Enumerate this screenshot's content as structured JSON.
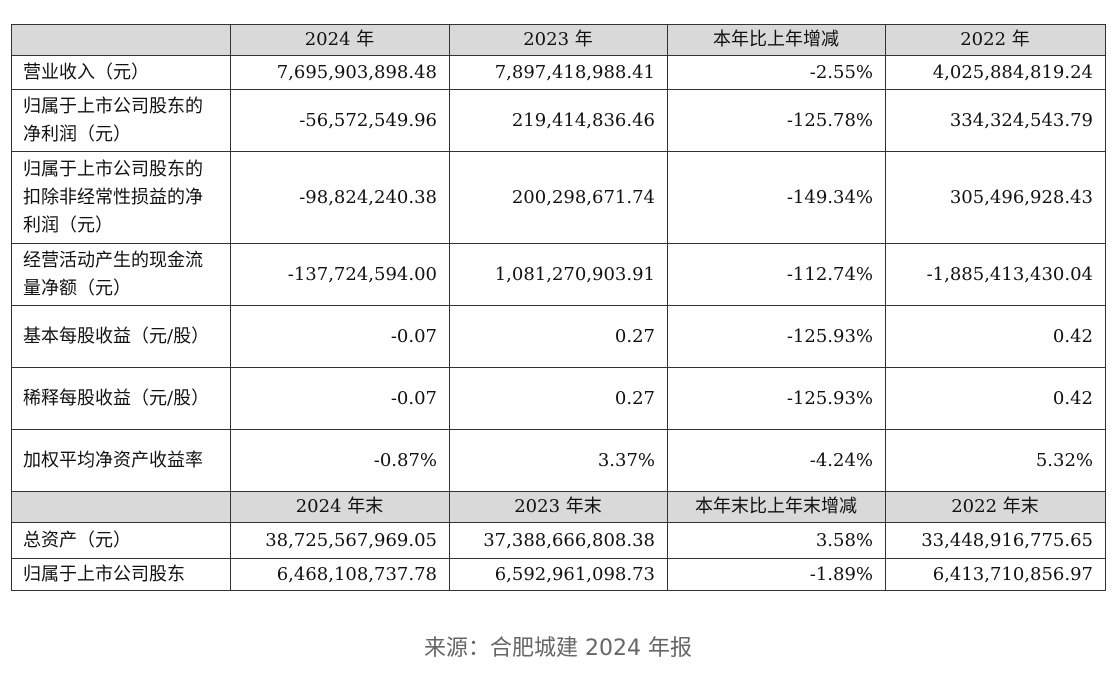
{
  "table": {
    "header1": [
      "",
      "2024 年",
      "2023 年",
      "本年比上年增减",
      "2022 年"
    ],
    "rows1": [
      {
        "label": "营业收入（元）",
        "values": [
          "7,695,903,898.48",
          "7,897,418,988.41",
          "-2.55%",
          "4,025,884,819.24"
        ]
      },
      {
        "label": "归属于上市公司股东的净利润（元）",
        "values": [
          "-56,572,549.96",
          "219,414,836.46",
          "-125.78%",
          "334,324,543.79"
        ]
      },
      {
        "label": "归属于上市公司股东的扣除非经常性损益的净利润（元）",
        "values": [
          "-98,824,240.38",
          "200,298,671.74",
          "-149.34%",
          "305,496,928.43"
        ]
      },
      {
        "label": "经营活动产生的现金流量净额（元）",
        "values": [
          "-137,724,594.00",
          "1,081,270,903.91",
          "-112.74%",
          "-1,885,413,430.04"
        ]
      },
      {
        "label": "基本每股收益（元/股）",
        "values": [
          "-0.07",
          "0.27",
          "-125.93%",
          "0.42"
        ]
      },
      {
        "label": "稀释每股收益（元/股）",
        "values": [
          "-0.07",
          "0.27",
          "-125.93%",
          "0.42"
        ]
      },
      {
        "label": "加权平均净资产收益率",
        "values": [
          "-0.87%",
          "3.37%",
          "-4.24%",
          "5.32%"
        ]
      }
    ],
    "header2": [
      "",
      "2024 年末",
      "2023 年末",
      "本年末比上年末增减",
      "2022 年末"
    ],
    "rows2": [
      {
        "label": "总资产（元）",
        "values": [
          "38,725,567,969.05",
          "37,388,666,808.38",
          "3.58%",
          "33,448,916,775.65"
        ]
      },
      {
        "label": "归属于上市公司股东",
        "values": [
          "6,468,108,737.78",
          "6,592,961,098.73",
          "-1.89%",
          "6,413,710,856.97"
        ]
      }
    ]
  },
  "source": "来源：合肥城建 2024 年报"
}
